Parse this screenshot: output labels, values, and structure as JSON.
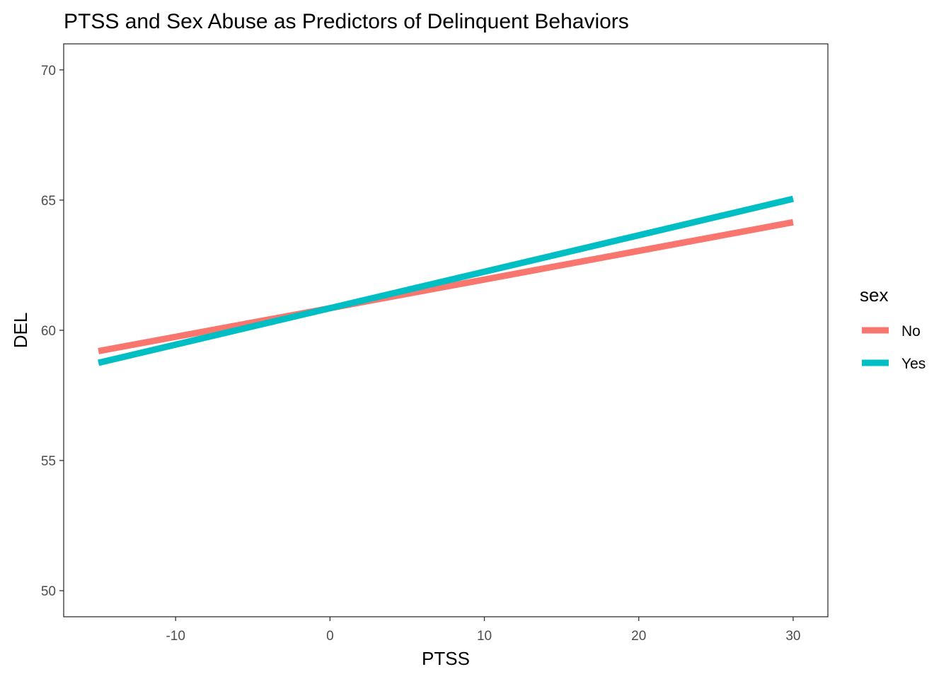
{
  "chart_data": {
    "type": "line",
    "title": "PTSS and Sex Abuse as Predictors of Delinquent Behaviors",
    "xlabel": "PTSS",
    "ylabel": "DEL",
    "xlim": [
      -17.25,
      32.25
    ],
    "ylim": [
      49,
      71
    ],
    "x_ticks": [
      -10,
      0,
      10,
      20,
      30
    ],
    "x_tick_labels": [
      "-10",
      "0",
      "10",
      "20",
      "30"
    ],
    "y_ticks": [
      50,
      55,
      60,
      65,
      70
    ],
    "y_tick_labels": [
      "50",
      "55",
      "60",
      "65",
      "70"
    ],
    "grid": false,
    "legend": {
      "title": "sex",
      "position": "right"
    },
    "series": [
      {
        "name": "No",
        "color": "#F8766D",
        "x": [
          -15,
          30
        ],
        "y": [
          59.2,
          64.15
        ]
      },
      {
        "name": "Yes",
        "color": "#00BFC4",
        "x": [
          -15,
          30
        ],
        "y": [
          58.75,
          65.05
        ]
      }
    ]
  }
}
